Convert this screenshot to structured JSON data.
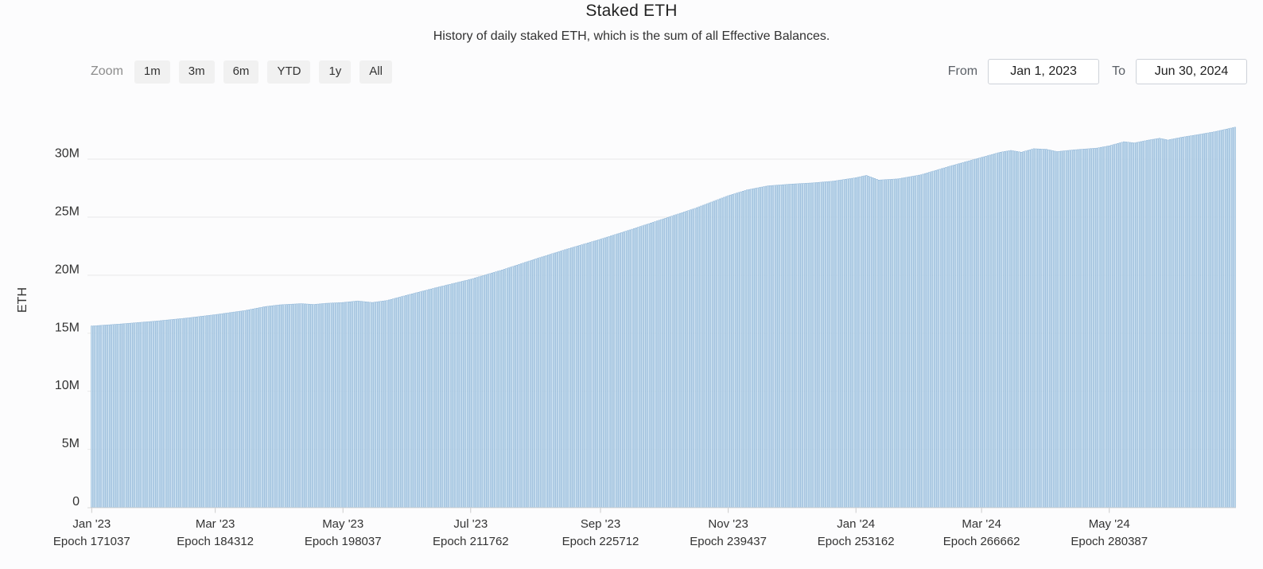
{
  "header": {
    "title": "Staked ETH",
    "subtitle": "History of daily staked ETH, which is the sum of all Effective Balances."
  },
  "toolbar": {
    "zoom_label": "Zoom",
    "buttons": [
      {
        "label": "1m"
      },
      {
        "label": "3m"
      },
      {
        "label": "6m"
      },
      {
        "label": "YTD"
      },
      {
        "label": "1y"
      },
      {
        "label": "All"
      }
    ],
    "from_label": "From",
    "from_value": "Jan 1, 2023",
    "to_label": "To",
    "to_value": "Jun 30, 2024"
  },
  "chart_data": {
    "type": "bar",
    "title": "Staked ETH",
    "xlabel": "",
    "ylabel": "ETH",
    "x_start": "2023-01-01",
    "x_end": "2024-06-30",
    "n_days": 547,
    "grid": true,
    "legend": false,
    "ylim": [
      0,
      33
    ],
    "yticks": [
      {
        "value": 0,
        "label": "0"
      },
      {
        "value": 5,
        "label": "5M"
      },
      {
        "value": 10,
        "label": "10M"
      },
      {
        "value": 15,
        "label": "15M"
      },
      {
        "value": 20,
        "label": "20M"
      },
      {
        "value": 25,
        "label": "25M"
      },
      {
        "value": 30,
        "label": "30M"
      }
    ],
    "xticks": [
      {
        "day": 0,
        "label": "Jan '23",
        "epoch": "Epoch 171037"
      },
      {
        "day": 59,
        "label": "Mar '23",
        "epoch": "Epoch 184312"
      },
      {
        "day": 120,
        "label": "May '23",
        "epoch": "Epoch 198037"
      },
      {
        "day": 181,
        "label": "Jul '23",
        "epoch": "Epoch 211762"
      },
      {
        "day": 243,
        "label": "Sep '23",
        "epoch": "Epoch 225712"
      },
      {
        "day": 304,
        "label": "Nov '23",
        "epoch": "Epoch 239437"
      },
      {
        "day": 365,
        "label": "Jan '24",
        "epoch": "Epoch 253162"
      },
      {
        "day": 425,
        "label": "Mar '24",
        "epoch": "Epoch 266662"
      },
      {
        "day": 486,
        "label": "May '24",
        "epoch": "Epoch 280387"
      }
    ],
    "unit": "million ETH",
    "series_note": "Daily staked ETH (millions); anchors are [day offset from 2023-01-01, value]; daily bars linearly interpolated between anchors.",
    "series_anchors": [
      [
        0,
        15.62
      ],
      [
        14,
        15.8
      ],
      [
        31,
        16.05
      ],
      [
        45,
        16.3
      ],
      [
        59,
        16.6
      ],
      [
        73,
        16.95
      ],
      [
        83,
        17.3
      ],
      [
        90,
        17.45
      ],
      [
        100,
        17.55
      ],
      [
        106,
        17.48
      ],
      [
        112,
        17.58
      ],
      [
        120,
        17.65
      ],
      [
        127,
        17.78
      ],
      [
        134,
        17.65
      ],
      [
        141,
        17.82
      ],
      [
        151,
        18.3
      ],
      [
        165,
        18.95
      ],
      [
        181,
        19.65
      ],
      [
        196,
        20.45
      ],
      [
        212,
        21.4
      ],
      [
        227,
        22.25
      ],
      [
        243,
        23.1
      ],
      [
        257,
        23.9
      ],
      [
        273,
        24.85
      ],
      [
        288,
        25.75
      ],
      [
        304,
        26.85
      ],
      [
        313,
        27.35
      ],
      [
        323,
        27.7
      ],
      [
        334,
        27.85
      ],
      [
        344,
        27.95
      ],
      [
        354,
        28.1
      ],
      [
        365,
        28.4
      ],
      [
        370,
        28.6
      ],
      [
        376,
        28.2
      ],
      [
        385,
        28.3
      ],
      [
        396,
        28.65
      ],
      [
        410,
        29.4
      ],
      [
        425,
        30.15
      ],
      [
        434,
        30.6
      ],
      [
        439,
        30.75
      ],
      [
        444,
        30.6
      ],
      [
        450,
        30.9
      ],
      [
        456,
        30.85
      ],
      [
        461,
        30.65
      ],
      [
        469,
        30.8
      ],
      [
        480,
        30.95
      ],
      [
        486,
        31.15
      ],
      [
        493,
        31.5
      ],
      [
        498,
        31.4
      ],
      [
        505,
        31.65
      ],
      [
        510,
        31.8
      ],
      [
        514,
        31.65
      ],
      [
        521,
        31.9
      ],
      [
        528,
        32.1
      ],
      [
        536,
        32.35
      ],
      [
        541,
        32.55
      ],
      [
        546,
        32.75
      ]
    ],
    "colors": {
      "bar_fill": "#cfe3f2",
      "bar_stroke": "#88b1d5",
      "grid": "#e9e9e9",
      "axis_line": "#d8d8d8",
      "tick_mark": "#cccccc",
      "axis_text": "#333333",
      "page_bg": "#fcfcfd"
    }
  }
}
